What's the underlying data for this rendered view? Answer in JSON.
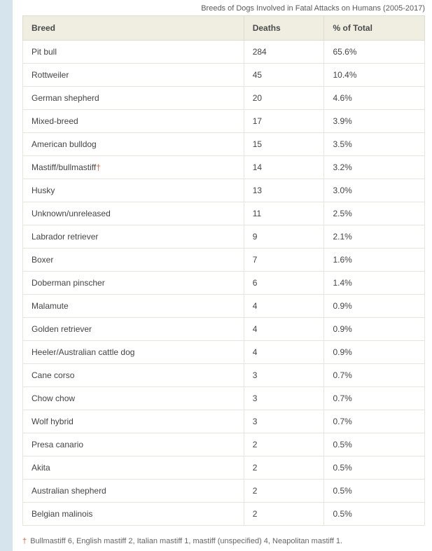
{
  "caption": "Breeds of Dogs Involved in Fatal Attacks on Humans (2005-2017)",
  "columns": [
    "Breed",
    "Deaths",
    "% of Total"
  ],
  "rows": [
    {
      "breed": "Pit bull",
      "deaths": "284",
      "pct": "65.6%",
      "dagger": false
    },
    {
      "breed": "Rottweiler",
      "deaths": "45",
      "pct": "10.4%",
      "dagger": false
    },
    {
      "breed": "German shepherd",
      "deaths": "20",
      "pct": "4.6%",
      "dagger": false
    },
    {
      "breed": "Mixed-breed",
      "deaths": "17",
      "pct": "3.9%",
      "dagger": false
    },
    {
      "breed": "American bulldog",
      "deaths": "15",
      "pct": "3.5%",
      "dagger": false
    },
    {
      "breed": "Mastiff/bullmastiff",
      "deaths": "14",
      "pct": "3.2%",
      "dagger": true
    },
    {
      "breed": "Husky",
      "deaths": "13",
      "pct": "3.0%",
      "dagger": false
    },
    {
      "breed": "Unknown/unreleased",
      "deaths": "11",
      "pct": "2.5%",
      "dagger": false
    },
    {
      "breed": "Labrador retriever",
      "deaths": "9",
      "pct": "2.1%",
      "dagger": false
    },
    {
      "breed": "Boxer",
      "deaths": "7",
      "pct": "1.6%",
      "dagger": false
    },
    {
      "breed": "Doberman pinscher",
      "deaths": "6",
      "pct": "1.4%",
      "dagger": false
    },
    {
      "breed": "Malamute",
      "deaths": "4",
      "pct": "0.9%",
      "dagger": false
    },
    {
      "breed": "Golden retriever",
      "deaths": "4",
      "pct": "0.9%",
      "dagger": false
    },
    {
      "breed": "Heeler/Australian cattle dog",
      "deaths": "4",
      "pct": "0.9%",
      "dagger": false
    },
    {
      "breed": "Cane corso",
      "deaths": "3",
      "pct": "0.7%",
      "dagger": false
    },
    {
      "breed": "Chow chow",
      "deaths": "3",
      "pct": "0.7%",
      "dagger": false
    },
    {
      "breed": "Wolf hybrid",
      "deaths": "3",
      "pct": "0.7%",
      "dagger": false
    },
    {
      "breed": "Presa canario",
      "deaths": "2",
      "pct": "0.5%",
      "dagger": false
    },
    {
      "breed": "Akita",
      "deaths": "2",
      "pct": "0.5%",
      "dagger": false
    },
    {
      "breed": "Australian shepherd",
      "deaths": "2",
      "pct": "0.5%",
      "dagger": false
    },
    {
      "breed": "Belgian malinois",
      "deaths": "2",
      "pct": "0.5%",
      "dagger": false
    }
  ],
  "dagger_symbol": "†",
  "footnote": "Bullmastiff 6, English mastiff 2, Italian mastiff 1, mastiff (unspecified) 4, Neapolitan mastiff 1.",
  "style": {
    "header_bg": "#f0eee1",
    "header_border": "#dcdccf",
    "cell_border": "#e6e6dc",
    "dagger_color": "#d1654b",
    "leftbar_color": "#d6e4ee",
    "text_color": "#444444",
    "caption_color": "#5a5a5a",
    "font_size_body": 12,
    "font_size_caption": 11
  }
}
